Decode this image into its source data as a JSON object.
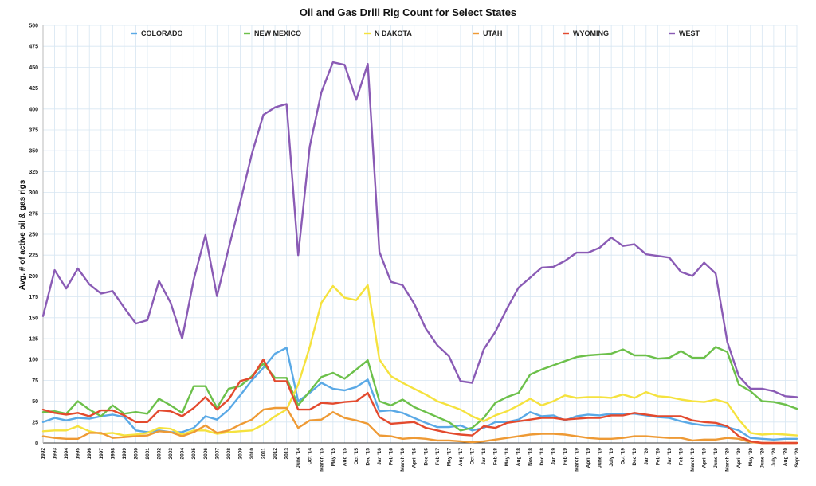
{
  "chart_data": {
    "type": "line",
    "title": "Oil and Gas Drill Rig Count for Select States",
    "xlabel": "",
    "ylabel": "Avg. # of active oil & gas rigs",
    "ylim": [
      0,
      500
    ],
    "ytick_step": 25,
    "grid": true,
    "legend_position": "top",
    "x": [
      "1992",
      "1993",
      "1994",
      "1995",
      "1996",
      "1997",
      "1998",
      "1999",
      "2000",
      "2001",
      "2002",
      "2003",
      "2004",
      "2005",
      "2006",
      "2007",
      "2008",
      "2009",
      "2010",
      "2011",
      "2012",
      "2013",
      "June '14",
      "Oct '14",
      "March '15",
      "May '15",
      "Aug '15",
      "Oct '15",
      "Dec '15",
      "Jan '16",
      "Feb '16",
      "March '16",
      "April '16",
      "Dec '16",
      "Feb '17",
      "May '17",
      "Aug '17",
      "Oct '17",
      "Jan '18",
      "Feb '18",
      "May '18",
      "Aug '18",
      "Nov '18",
      "Dec '18",
      "Jan '19",
      "Feb '19",
      "March '19",
      "April '19",
      "June '19",
      "July '19",
      "Oct '19",
      "Dec '19",
      "Jan '20",
      "Feb '20",
      "Jan '19",
      "Feb '19",
      "March '19",
      "April '19",
      "June '19",
      "March '20",
      "April '20",
      "May '20",
      "June '20",
      "July '20",
      "Aug '20",
      "Sept '20"
    ],
    "x_tick_labels": [
      "1992",
      "1993",
      "1994",
      "1995",
      "1996",
      "1997",
      "1998",
      "1999",
      "2000",
      "2001",
      "2002",
      "2003",
      "2004",
      "2005",
      "2006",
      "2007",
      "2008",
      "2009",
      "2010",
      "2011",
      "2012",
      "2013",
      "June '14",
      "Oct '14",
      "March '15",
      "May '15",
      "Aug '15",
      "Oct '15",
      "Dec '15",
      "Jan '16",
      "Feb '16",
      "March '16",
      "April '16",
      "Dec '16",
      "Feb '17",
      "May '17",
      "Aug '17",
      "Oct '17",
      "Jan '18",
      "Feb '18",
      "May '18",
      "Aug '18",
      "Nov '18",
      "Dec '18",
      "Jan '19",
      "Feb '19",
      "March '19",
      "April '19",
      "June '19",
      "July '19",
      "Oct '19",
      "Dec '19",
      "Jan '20",
      "Feb '20",
      "Jan '19",
      "Feb '19",
      "March '19",
      "April '19",
      "June '19",
      "March '20",
      "April '20",
      "May '20",
      "June '20",
      "July '20",
      "Aug '20",
      "Sept '20"
    ],
    "series": [
      {
        "name": "COLORADO",
        "color": "#5aa9e6",
        "values": [
          25,
          30,
          27,
          30,
          29,
          32,
          34,
          31,
          15,
          13,
          15,
          13,
          13,
          18,
          32,
          28,
          40,
          57,
          75,
          90,
          107,
          114,
          50,
          60,
          72,
          65,
          63,
          67,
          76,
          38,
          39,
          36,
          30,
          24,
          19,
          19,
          21,
          15,
          18,
          25,
          25,
          28,
          37,
          32,
          33,
          27,
          32,
          34,
          33,
          35,
          35,
          35,
          33,
          31,
          30,
          26,
          23,
          21,
          21,
          19,
          15,
          6,
          5,
          4,
          5,
          5
        ]
      },
      {
        "name": "NEW MEXICO",
        "color": "#6cc04a",
        "values": [
          37,
          38,
          35,
          50,
          40,
          32,
          45,
          35,
          37,
          35,
          53,
          45,
          36,
          68,
          68,
          42,
          65,
          68,
          80,
          95,
          78,
          78,
          45,
          62,
          79,
          84,
          77,
          88,
          99,
          50,
          45,
          52,
          43,
          37,
          31,
          25,
          15,
          18,
          30,
          48,
          55,
          60,
          82,
          88,
          93,
          98,
          103,
          105,
          106,
          107,
          112,
          105,
          105,
          101,
          102,
          110,
          102,
          102,
          115,
          109,
          70,
          62,
          50,
          49,
          46,
          41
        ]
      },
      {
        "name": "N DAKOTA",
        "color": "#f5e23e",
        "values": [
          14,
          15,
          15,
          20,
          14,
          11,
          12,
          9,
          10,
          12,
          18,
          17,
          10,
          15,
          15,
          11,
          13,
          14,
          15,
          22,
          32,
          40,
          70,
          115,
          168,
          188,
          174,
          171,
          189,
          100,
          80,
          72,
          65,
          58,
          50,
          45,
          40,
          32,
          26,
          33,
          38,
          45,
          53,
          45,
          50,
          57,
          54,
          55,
          55,
          54,
          58,
          54,
          61,
          56,
          55,
          52,
          50,
          49,
          52,
          48,
          28,
          12,
          10,
          11,
          10,
          9
        ]
      },
      {
        "name": "UTAH",
        "color": "#ee9a35",
        "values": [
          8,
          6,
          5,
          5,
          12,
          12,
          6,
          7,
          8,
          9,
          14,
          13,
          8,
          13,
          21,
          12,
          15,
          22,
          28,
          40,
          42,
          42,
          18,
          27,
          28,
          37,
          30,
          27,
          23,
          9,
          8,
          5,
          6,
          5,
          3,
          3,
          2,
          1,
          2,
          4,
          6,
          8,
          10,
          11,
          11,
          10,
          8,
          6,
          5,
          5,
          6,
          8,
          8,
          7,
          6,
          6,
          3,
          4,
          4,
          6,
          5,
          1,
          0,
          0,
          0,
          0
        ]
      },
      {
        "name": "WYOMING",
        "color": "#e34a2e",
        "values": [
          40,
          36,
          34,
          36,
          32,
          39,
          39,
          33,
          25,
          25,
          39,
          38,
          32,
          42,
          55,
          40,
          52,
          74,
          78,
          100,
          74,
          74,
          40,
          40,
          48,
          47,
          49,
          50,
          60,
          31,
          23,
          24,
          25,
          18,
          15,
          12,
          10,
          9,
          20,
          18,
          24,
          26,
          28,
          30,
          30,
          28,
          29,
          30,
          30,
          33,
          33,
          36,
          34,
          32,
          32,
          32,
          27,
          25,
          24,
          20,
          8,
          2,
          0,
          0,
          0,
          0
        ]
      },
      {
        "name": "WEST",
        "color": "#8a5bb5",
        "values": [
          152,
          207,
          185,
          209,
          190,
          179,
          182,
          162,
          143,
          147,
          194,
          168,
          125,
          196,
          249,
          176,
          233,
          288,
          346,
          393,
          402,
          406,
          225,
          355,
          420,
          456,
          453,
          411,
          454,
          229,
          193,
          189,
          167,
          137,
          117,
          104,
          74,
          72,
          112,
          133,
          161,
          186,
          198,
          210,
          211,
          218,
          228,
          228,
          234,
          246,
          236,
          238,
          226,
          224,
          222,
          205,
          200,
          216,
          203,
          121,
          80,
          65,
          65,
          62,
          56,
          55
        ]
      }
    ]
  }
}
